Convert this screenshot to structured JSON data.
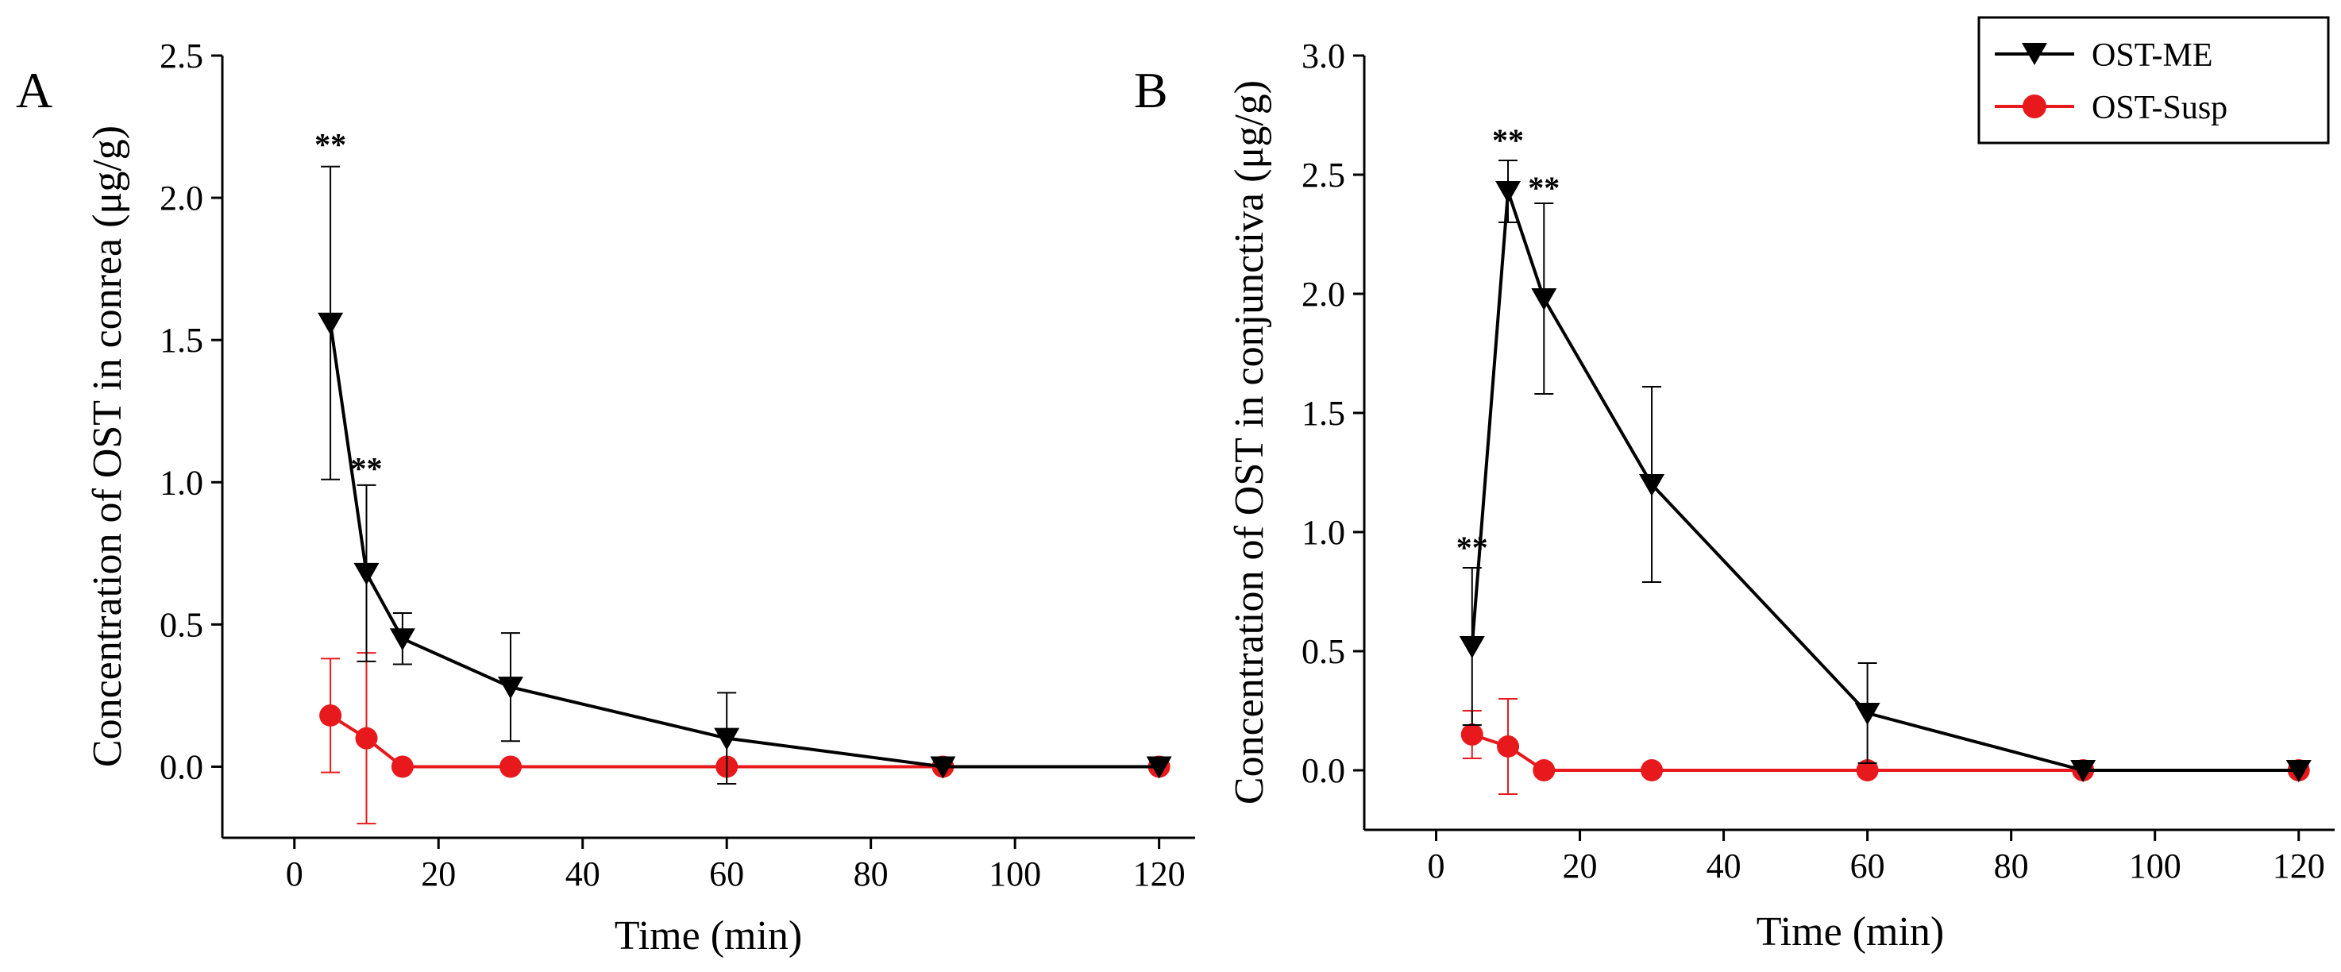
{
  "colors": {
    "me": "#000000",
    "susp": "#e8191c"
  },
  "legend": {
    "me_label": "OST-ME",
    "susp_label": "OST-Susp"
  },
  "chart_data": [
    {
      "panel": "A",
      "type": "line",
      "xlabel": "Time (min)",
      "ylabel": "Concentration of OST in conrea (μg/g)",
      "xlim": [
        -10,
        125
      ],
      "ylim": [
        -0.25,
        2.5
      ],
      "xticks": [
        0,
        20,
        40,
        60,
        80,
        100,
        120
      ],
      "yticks": [
        "0.0",
        "0.5",
        "1.0",
        "1.5",
        "2.0",
        "2.5"
      ],
      "series": [
        {
          "name": "OST-ME",
          "marker": "triangle-down",
          "color": "#000000",
          "x": [
            5,
            10,
            15,
            30,
            60,
            90,
            120
          ],
          "y": [
            1.56,
            0.68,
            0.45,
            0.28,
            0.1,
            0.0,
            0.0
          ],
          "err": [
            0.55,
            0.31,
            0.09,
            0.19,
            0.16,
            0.0,
            0.0
          ]
        },
        {
          "name": "OST-Susp",
          "marker": "circle",
          "color": "#e8191c",
          "x": [
            5,
            10,
            15,
            30,
            60,
            90,
            120
          ],
          "y": [
            0.18,
            0.1,
            0.0,
            0.0,
            0.0,
            0.0,
            0.0
          ],
          "err": [
            0.2,
            0.3,
            0.0,
            0.0,
            0.0,
            0.0,
            0.0
          ]
        }
      ],
      "annotations": [
        {
          "text": "**",
          "x": 5,
          "y": 2.15
        },
        {
          "text": "**",
          "x": 10,
          "y": 1.01
        }
      ]
    },
    {
      "panel": "B",
      "type": "line",
      "xlabel": "Time (min)",
      "ylabel": "Concentration of OST in conjunctiva (μg/g)",
      "xlim": [
        -10,
        125
      ],
      "ylim": [
        -0.25,
        3.0
      ],
      "xticks": [
        0,
        20,
        40,
        60,
        80,
        100,
        120
      ],
      "yticks": [
        "0.0",
        "0.5",
        "1.0",
        "1.5",
        "2.0",
        "2.5",
        "3.0"
      ],
      "series": [
        {
          "name": "OST-ME",
          "marker": "triangle-down",
          "color": "#000000",
          "x": [
            5,
            10,
            15,
            30,
            60,
            90,
            120
          ],
          "y": [
            0.52,
            2.43,
            1.98,
            1.2,
            0.24,
            0.0,
            0.0
          ],
          "err": [
            0.33,
            0.13,
            0.4,
            0.41,
            0.21,
            0.0,
            0.0
          ]
        },
        {
          "name": "OST-Susp",
          "marker": "circle",
          "color": "#e8191c",
          "x": [
            5,
            10,
            15,
            30,
            60,
            90,
            120
          ],
          "y": [
            0.15,
            0.1,
            0.0,
            0.0,
            0.0,
            0.0,
            0.0
          ],
          "err": [
            0.1,
            0.2,
            0.0,
            0.0,
            0.0,
            0.0,
            0.0
          ]
        }
      ],
      "annotations": [
        {
          "text": "**",
          "x": 5,
          "y": 0.89
        },
        {
          "text": "**",
          "x": 10,
          "y": 2.6
        },
        {
          "text": "**",
          "x": 15,
          "y": 2.4
        }
      ]
    }
  ]
}
